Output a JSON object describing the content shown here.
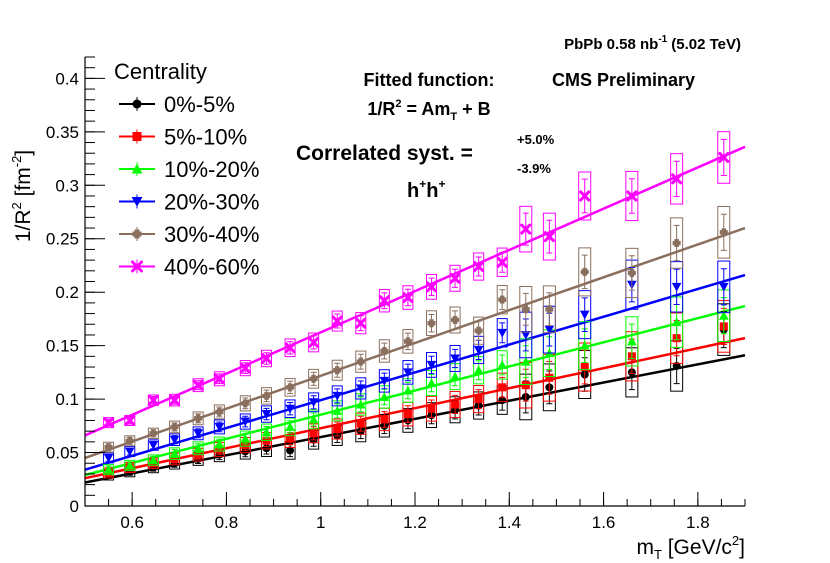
{
  "chart_data": {
    "type": "scatter",
    "header": {
      "system_prefix": "PbPb 0.58 nb",
      "system_exp": "-1",
      "energy": "(5.02 TeV)"
    },
    "preliminary_label": "CMS Preliminary",
    "fit_label": {
      "line1": "Fitted function:",
      "line2_a": "1/R",
      "line2_sup": "2",
      "line2_b": " = Am",
      "line2_sub": "T",
      "line2_c": " + B"
    },
    "syst_label": {
      "text": "Correlated syst. =",
      "plus": "+5.0%",
      "minus": "-3.9%"
    },
    "particle_label": {
      "base1": "h",
      "sup1": "+",
      "base2": "h",
      "sup2": "+"
    },
    "legend_title": "Centrality",
    "xlabel": {
      "base": "m",
      "sub": "T",
      "rest_a": " [GeV/c",
      "sup": "2",
      "rest_b": "]"
    },
    "ylabel": {
      "base": "1/R",
      "sup": "2",
      "rest_a": " [fm",
      "sup2": "-2",
      "rest_b": "]"
    },
    "xlim": [
      0.5,
      1.9
    ],
    "ylim": [
      0,
      0.42
    ],
    "x_ticks": [
      "0.6",
      "0.8",
      "1",
      "1.2",
      "1.4",
      "1.6",
      "1.8"
    ],
    "y_ticks": [
      "0",
      "0.05",
      "0.1",
      "0.15",
      "0.2",
      "0.25",
      "0.3",
      "0.35",
      "0.4"
    ],
    "x": [
      0.55,
      0.595,
      0.645,
      0.69,
      0.74,
      0.785,
      0.84,
      0.885,
      0.935,
      0.985,
      1.035,
      1.085,
      1.135,
      1.185,
      1.235,
      1.285,
      1.335,
      1.385,
      1.435,
      1.485,
      1.56,
      1.66,
      1.755,
      1.855
    ],
    "series": [
      {
        "name": "0%-5%",
        "color": "#000000",
        "marker": "circle",
        "y": [
          0.029,
          0.032,
          0.036,
          0.04,
          0.044,
          0.048,
          0.051,
          0.054,
          0.052,
          0.062,
          0.066,
          0.07,
          0.075,
          0.08,
          0.085,
          0.09,
          0.094,
          0.099,
          0.102,
          0.111,
          0.123,
          0.125,
          0.131,
          0.165
        ],
        "fit": [
          0.022,
          0.141
        ]
      },
      {
        "name": "5%-10%",
        "color": "#ff0000",
        "marker": "square",
        "y": [
          0.031,
          0.036,
          0.04,
          0.044,
          0.048,
          0.053,
          0.057,
          0.061,
          0.063,
          0.068,
          0.072,
          0.077,
          0.081,
          0.086,
          0.091,
          0.095,
          0.1,
          0.111,
          0.113,
          0.12,
          0.13,
          0.14,
          0.157,
          0.168
        ],
        "fit": [
          0.026,
          0.157
        ]
      },
      {
        "name": "10%-20%",
        "color": "#00ff00",
        "marker": "triangle-up",
        "y": [
          0.034,
          0.038,
          0.043,
          0.049,
          0.054,
          0.058,
          0.063,
          0.069,
          0.074,
          0.081,
          0.089,
          0.095,
          0.102,
          0.108,
          0.115,
          0.121,
          0.127,
          0.132,
          0.135,
          0.143,
          0.15,
          0.154,
          0.172,
          0.178
        ],
        "fit": [
          0.029,
          0.187
        ]
      },
      {
        "name": "20%-30%",
        "color": "#0000ff",
        "marker": "triangle-down",
        "y": [
          0.045,
          0.051,
          0.057,
          0.062,
          0.068,
          0.074,
          0.079,
          0.086,
          0.091,
          0.097,
          0.103,
          0.11,
          0.117,
          0.125,
          0.132,
          0.138,
          0.146,
          0.162,
          0.16,
          0.165,
          0.179,
          0.207,
          0.205,
          0.205
        ],
        "fit": [
          0.034,
          0.216
        ]
      },
      {
        "name": "30%-40%",
        "color": "#8b6f5e",
        "marker": "cross",
        "y": [
          0.055,
          0.061,
          0.068,
          0.074,
          0.082,
          0.088,
          0.096,
          0.103,
          0.111,
          0.119,
          0.127,
          0.135,
          0.145,
          0.154,
          0.171,
          0.174,
          0.164,
          0.193,
          0.184,
          0.184,
          0.219,
          0.218,
          0.246,
          0.256
        ],
        "fit": [
          0.045,
          0.26
        ]
      },
      {
        "name": "40%-60%",
        "color": "#ff00ff",
        "marker": "x",
        "y": [
          0.078,
          0.08,
          0.099,
          0.099,
          0.113,
          0.119,
          0.129,
          0.138,
          0.148,
          0.153,
          0.173,
          0.171,
          0.192,
          0.195,
          0.205,
          0.213,
          0.224,
          0.228,
          0.259,
          0.252,
          0.29,
          0.29,
          0.306,
          0.326
        ],
        "fit": [
          0.066,
          0.336
        ]
      }
    ]
  }
}
